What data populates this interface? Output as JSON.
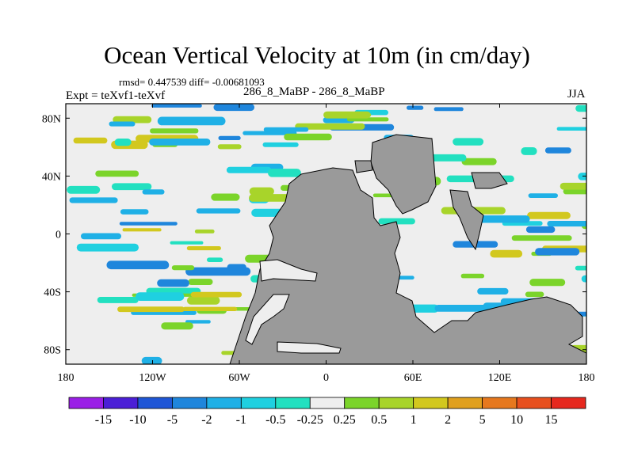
{
  "header": {
    "title": "Ocean Vertical Velocity at 10m (in cm/day)",
    "stats": "rmsd= 0.447539 diff= -0.00681093",
    "runs": "286_8_MaBP - 286_8_MaBP",
    "experiment": "Expt = teXvf1-teXvf",
    "season": "JJA"
  },
  "chart_data": {
    "type": "heatmap",
    "title": "Ocean Vertical Velocity at 10m (in cm/day)",
    "xlabel": "",
    "ylabel": "",
    "xlim": [
      -180,
      180
    ],
    "ylim": [
      -90,
      90
    ],
    "x_ticks": [
      {
        "value": -180,
        "label": "180"
      },
      {
        "value": -120,
        "label": "120W"
      },
      {
        "value": -60,
        "label": "60W"
      },
      {
        "value": 0,
        "label": "0"
      },
      {
        "value": 60,
        "label": "60E"
      },
      {
        "value": 120,
        "label": "120E"
      },
      {
        "value": 180,
        "label": "180"
      }
    ],
    "y_ticks": [
      {
        "value": 80,
        "label": "80N"
      },
      {
        "value": 40,
        "label": "40N"
      },
      {
        "value": 0,
        "label": "0"
      },
      {
        "value": -40,
        "label": "40S"
      },
      {
        "value": -80,
        "label": "80S"
      }
    ],
    "colorbar": {
      "levels": [
        "-15",
        "-10",
        "-5",
        "-2",
        "-1",
        "-0.5",
        "-0.25",
        "0.25",
        "0.5",
        "1",
        "2",
        "5",
        "10",
        "15"
      ],
      "colors": [
        "#9a1fe6",
        "#4b1fd6",
        "#1f56d6",
        "#1f86dc",
        "#1fb0e6",
        "#1fd0e0",
        "#22e0c0",
        "#eeeeee",
        "#7bd42a",
        "#a8d42a",
        "#d2c81e",
        "#e0a01e",
        "#e6781e",
        "#e8501e",
        "#e6281e"
      ]
    },
    "land_color": "#9a9a9a",
    "background_color": "#eeeeee"
  }
}
